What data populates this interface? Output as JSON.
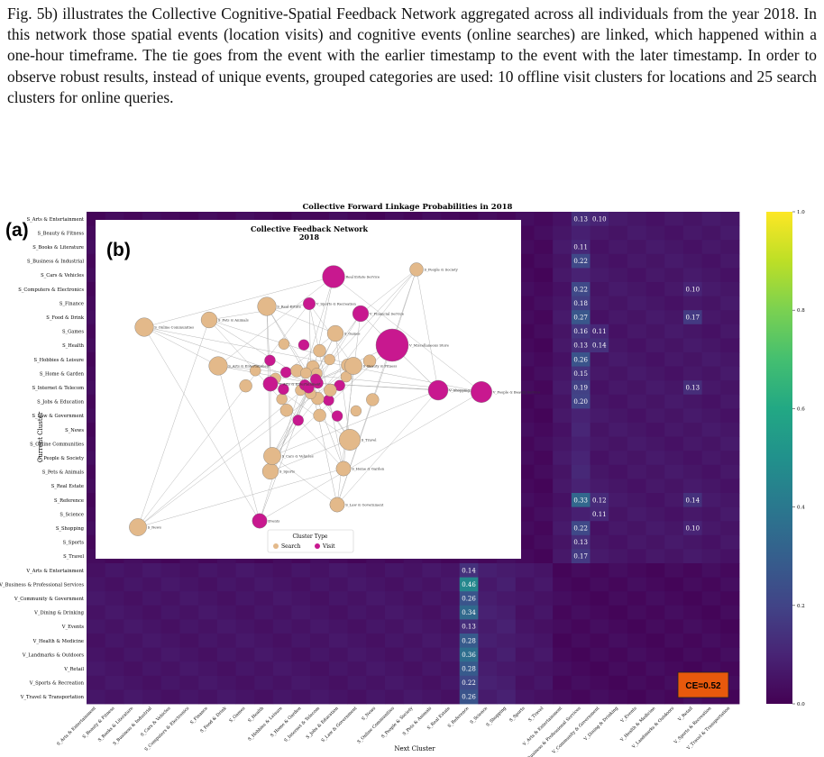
{
  "paragraph": "Fig. 5b) illustrates the Collective Cognitive-Spatial Feedback Network aggregated across all individuals from the year 2018. In this network those spatial events (location visits) and cognitive events (online searches) are linked, which happened within a one-hour timeframe. The tie goes from the event with the earlier timestamp to the event with the later timestamp. In order to observe robust results, instead of unique events, grouped categories are used: 10 offline visit clusters for locations and 25 search clusters for online queries.",
  "panel_labels": {
    "a": "(a)",
    "b": "(b)"
  },
  "chart_data": [
    {
      "type": "heatmap",
      "title": "Collective Forward Linkage Probabilities in 2018",
      "xlabel": "Next Cluster",
      "ylabel": "Current Cluster",
      "colorbar": {
        "colormap": "viridis",
        "min": 0.0,
        "max": 1.0,
        "ticks": [
          "0.0",
          "0.2",
          "0.4",
          "0.6",
          "0.8",
          "1.0"
        ]
      },
      "row_labels": [
        "S_Arts & Entertainment",
        "S_Beauty & Fitness",
        "S_Books & Literature",
        "S_Business & Industrial",
        "S_Cars & Vehicles",
        "S_Computers & Electronics",
        "S_Finance",
        "S_Food & Drink",
        "S_Games",
        "S_Health",
        "S_Hobbies & Leisure",
        "S_Home & Garden",
        "S_Internet & Telecom",
        "S_Jobs & Education",
        "S_Law & Government",
        "S_News",
        "S_Online Communities",
        "S_People & Society",
        "S_Pets & Animals",
        "S_Real Estate",
        "S_Reference",
        "S_Science",
        "S_Shopping",
        "S_Sports",
        "S_Travel",
        "V_Arts & Entertainment",
        "V_Business & Professional Services",
        "V_Community & Government",
        "V_Dining & Drinking",
        "V_Events",
        "V_Health & Medicine",
        "V_Landmarks & Outdoors",
        "V_Retail",
        "V_Sports & Recreation",
        "V_Travel & Transportation"
      ],
      "col_labels": [
        "S_Arts & Entertainment",
        "S_Beauty & Fitness",
        "S_Books & Literature",
        "S_Business & Industrial",
        "S_Cars & Vehicles",
        "S_Computers & Electronics",
        "S_Finance",
        "S_Food & Drink",
        "S_Games",
        "S_Health",
        "S_Hobbies & Leisure",
        "S_Home & Garden",
        "S_Internet & Telecom",
        "S_Jobs & Education",
        "S_Law & Government",
        "S_News",
        "S_Online Communities",
        "S_People & Society",
        "S_Pets & Animals",
        "S_Real Estate",
        "S_Reference",
        "S_Science",
        "S_Shopping",
        "S_Sports",
        "S_Travel",
        "V_Arts & Entertainment",
        "V_Business & Professional Services",
        "V_Community & Government",
        "V_Dining & Drinking",
        "V_Events",
        "V_Health & Medicine",
        "V_Landmarks & Outdoors",
        "V_Retail",
        "V_Sports & Recreation",
        "V_Travel & Transportation"
      ],
      "annotated_cells": [
        {
          "row": 0,
          "col": 26,
          "value": "0.13"
        },
        {
          "row": 0,
          "col": 27,
          "value": "0.10"
        },
        {
          "row": 2,
          "col": 26,
          "value": "0.11"
        },
        {
          "row": 3,
          "col": 26,
          "value": "0.22"
        },
        {
          "row": 5,
          "col": 26,
          "value": "0.22"
        },
        {
          "row": 5,
          "col": 32,
          "value": "0.10"
        },
        {
          "row": 6,
          "col": 26,
          "value": "0.18"
        },
        {
          "row": 7,
          "col": 26,
          "value": "0.27"
        },
        {
          "row": 7,
          "col": 32,
          "value": "0.17"
        },
        {
          "row": 8,
          "col": 26,
          "value": "0.16"
        },
        {
          "row": 8,
          "col": 27,
          "value": "0.11"
        },
        {
          "row": 9,
          "col": 26,
          "value": "0.13"
        },
        {
          "row": 9,
          "col": 27,
          "value": "0.14"
        },
        {
          "row": 10,
          "col": 26,
          "value": "0.26"
        },
        {
          "row": 11,
          "col": 26,
          "value": "0.15"
        },
        {
          "row": 12,
          "col": 26,
          "value": "0.19"
        },
        {
          "row": 12,
          "col": 32,
          "value": "0.13"
        },
        {
          "row": 13,
          "col": 26,
          "value": "0.20"
        },
        {
          "row": 20,
          "col": 26,
          "value": "0.33"
        },
        {
          "row": 20,
          "col": 27,
          "value": "0.12"
        },
        {
          "row": 20,
          "col": 32,
          "value": "0.14"
        },
        {
          "row": 21,
          "col": 27,
          "value": "0.11"
        },
        {
          "row": 22,
          "col": 26,
          "value": "0.22"
        },
        {
          "row": 22,
          "col": 32,
          "value": "0.10"
        },
        {
          "row": 23,
          "col": 26,
          "value": "0.13"
        },
        {
          "row": 24,
          "col": 26,
          "value": "0.17"
        },
        {
          "row": 25,
          "col": 20,
          "value": "0.14"
        },
        {
          "row": 26,
          "col": 20,
          "value": "0.46"
        },
        {
          "row": 27,
          "col": 20,
          "value": "0.26"
        },
        {
          "row": 28,
          "col": 20,
          "value": "0.34"
        },
        {
          "row": 29,
          "col": 20,
          "value": "0.13"
        },
        {
          "row": 30,
          "col": 20,
          "value": "0.28"
        },
        {
          "row": 31,
          "col": 20,
          "value": "0.36"
        },
        {
          "row": 32,
          "col": 20,
          "value": "0.28"
        },
        {
          "row": 33,
          "col": 20,
          "value": "0.22"
        },
        {
          "row": 34,
          "col": 20,
          "value": "0.26"
        }
      ],
      "badge": {
        "text": "CE=0.52",
        "color": "#e8590c"
      }
    },
    {
      "type": "network",
      "title": "Collective Feedback Network\n2018",
      "legend_title": "Cluster Type",
      "legend": [
        {
          "name": "Search",
          "color": "#e3b98a"
        },
        {
          "name": "Visit",
          "color": "#c8188f"
        }
      ],
      "nodes": [
        {
          "label": "S_People & Society",
          "type": "Search",
          "size": 0.25
        },
        {
          "label": "Real Estate Service",
          "type": "Visit",
          "size": 0.6
        },
        {
          "label": "V_Sports & Recreation",
          "type": "Visit",
          "size": 0.2
        },
        {
          "label": "S_Real Estate",
          "type": "Search",
          "size": 0.45
        },
        {
          "label": "V_Financial Service",
          "type": "Visit",
          "size": 0.35
        },
        {
          "label": "S_Online Communities",
          "type": "Search",
          "size": 0.45
        },
        {
          "label": "S_Pets & Animals",
          "type": "Search",
          "size": 0.35
        },
        {
          "label": "S_Games",
          "type": "Search",
          "size": 0.35
        },
        {
          "label": "V_Miscellaneous Store",
          "type": "Visit",
          "size": 1.0
        },
        {
          "label": "S_Arts & Entertainment",
          "type": "Search",
          "size": 0.45
        },
        {
          "label": "S_Beauty & Fitness",
          "type": "Search",
          "size": 0.4
        },
        {
          "label": "V_Arts & Entertainment",
          "type": "Visit",
          "size": 0.3
        },
        {
          "label": "V_Shopping Plaza",
          "type": "Visit",
          "size": 0.5
        },
        {
          "label": "V_People & Beauty Service",
          "type": "Visit",
          "size": 0.55
        },
        {
          "label": "S_Home & Garden",
          "type": "Search",
          "size": 0.3
        },
        {
          "label": "S_Sports",
          "type": "Search",
          "size": 0.35
        },
        {
          "label": "S_Law & Government",
          "type": "Search",
          "size": 0.3
        },
        {
          "label": "Events",
          "type": "Visit",
          "size": 0.3
        },
        {
          "label": "S_News",
          "type": "Search",
          "size": 0.4
        },
        {
          "label": "S_Travel",
          "type": "Search",
          "size": 0.55
        },
        {
          "label": "S_Cars & Vehicles",
          "type": "Search",
          "size": 0.4
        }
      ]
    }
  ]
}
